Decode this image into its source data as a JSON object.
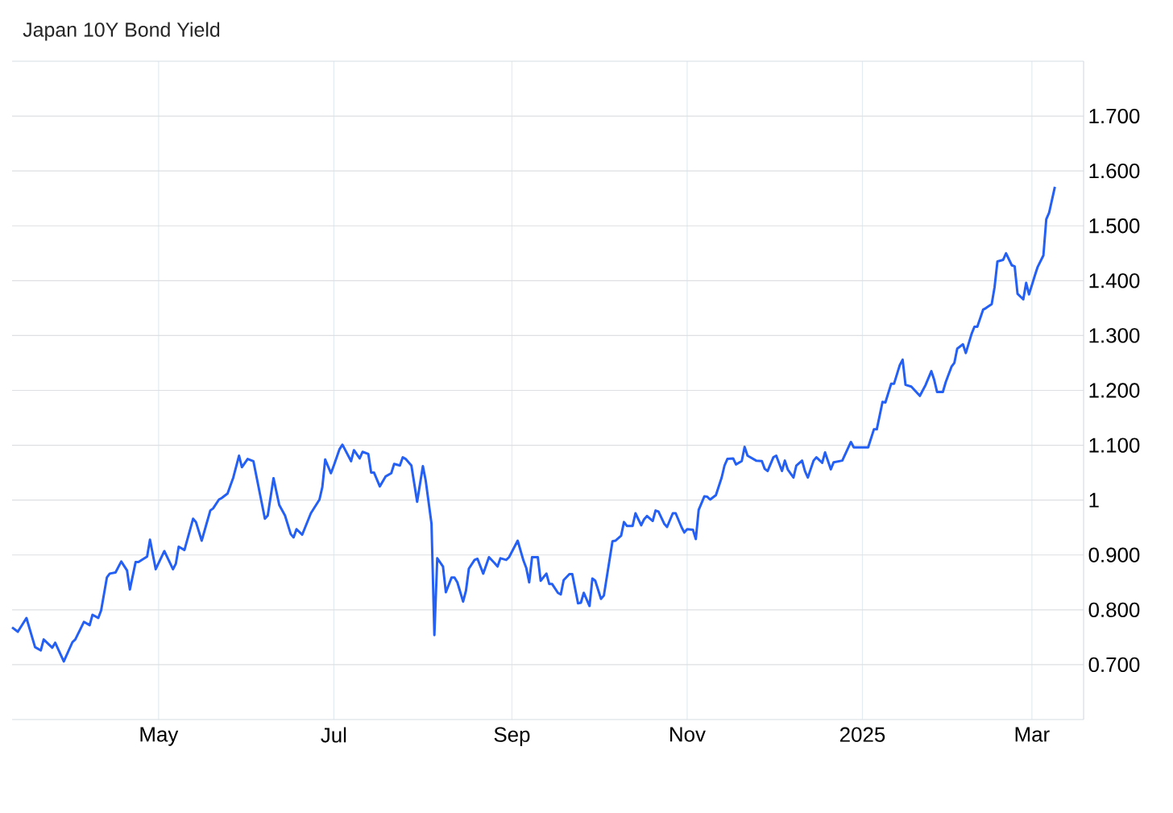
{
  "chart_data": {
    "type": "line",
    "title": "Japan 10Y Bond Yield",
    "x": [
      "2024-03-11",
      "2024-03-13",
      "2024-03-16",
      "2024-03-19",
      "2024-03-21",
      "2024-03-22",
      "2024-03-25",
      "2024-03-26",
      "2024-03-29",
      "2024-04-01",
      "2024-04-02",
      "2024-04-05",
      "2024-04-07",
      "2024-04-08",
      "2024-04-10",
      "2024-04-11",
      "2024-04-13",
      "2024-04-14",
      "2024-04-16",
      "2024-04-18",
      "2024-04-20",
      "2024-04-21",
      "2024-04-23",
      "2024-04-24",
      "2024-04-27",
      "2024-04-28",
      "2024-04-30",
      "2024-05-02",
      "2024-05-03",
      "2024-05-06",
      "2024-05-07",
      "2024-05-08",
      "2024-05-10",
      "2024-05-13",
      "2024-05-14",
      "2024-05-16",
      "2024-05-19",
      "2024-05-20",
      "2024-05-22",
      "2024-05-23",
      "2024-05-25",
      "2024-05-27",
      "2024-05-29",
      "2024-05-30",
      "2024-06-01",
      "2024-06-03",
      "2024-06-07",
      "2024-06-08",
      "2024-06-10",
      "2024-06-12",
      "2024-06-14",
      "2024-06-16",
      "2024-06-17",
      "2024-06-18",
      "2024-06-20",
      "2024-06-23",
      "2024-06-26",
      "2024-06-27",
      "2024-06-28",
      "2024-06-30",
      "2024-07-01",
      "2024-07-03",
      "2024-07-04",
      "2024-07-07",
      "2024-07-08",
      "2024-07-10",
      "2024-07-11",
      "2024-07-13",
      "2024-07-14",
      "2024-07-15",
      "2024-07-17",
      "2024-07-19",
      "2024-07-21",
      "2024-07-22",
      "2024-07-24",
      "2024-07-25",
      "2024-07-26",
      "2024-07-28",
      "2024-07-30",
      "2024-08-01",
      "2024-08-02",
      "2024-08-04",
      "2024-08-05",
      "2024-08-06",
      "2024-08-08",
      "2024-08-09",
      "2024-08-11",
      "2024-08-12",
      "2024-08-13",
      "2024-08-15",
      "2024-08-16",
      "2024-08-17",
      "2024-08-19",
      "2024-08-20",
      "2024-08-22",
      "2024-08-24",
      "2024-08-26",
      "2024-08-27",
      "2024-08-28",
      "2024-08-30",
      "2024-08-31",
      "2024-09-03",
      "2024-09-05",
      "2024-09-06",
      "2024-09-07",
      "2024-09-08",
      "2024-09-10",
      "2024-09-11",
      "2024-09-13",
      "2024-09-14",
      "2024-09-15",
      "2024-09-17",
      "2024-09-18",
      "2024-09-19",
      "2024-09-21",
      "2024-09-22",
      "2024-09-24",
      "2024-09-25",
      "2024-09-26",
      "2024-09-28",
      "2024-09-29",
      "2024-09-30",
      "2024-10-02",
      "2024-10-03",
      "2024-10-06",
      "2024-10-07",
      "2024-10-09",
      "2024-10-10",
      "2024-10-11",
      "2024-10-13",
      "2024-10-14",
      "2024-10-16",
      "2024-10-17",
      "2024-10-18",
      "2024-10-20",
      "2024-10-21",
      "2024-10-22",
      "2024-10-24",
      "2024-10-25",
      "2024-10-27",
      "2024-10-28",
      "2024-10-30",
      "2024-10-31",
      "2024-11-01",
      "2024-11-03",
      "2024-11-04",
      "2024-11-05",
      "2024-11-07",
      "2024-11-08",
      "2024-11-09",
      "2024-11-11",
      "2024-11-13",
      "2024-11-14",
      "2024-11-15",
      "2024-11-17",
      "2024-11-18",
      "2024-11-20",
      "2024-11-21",
      "2024-11-22",
      "2024-11-25",
      "2024-11-27",
      "2024-11-28",
      "2024-11-29",
      "2024-12-01",
      "2024-12-02",
      "2024-12-04",
      "2024-12-05",
      "2024-12-06",
      "2024-12-08",
      "2024-12-09",
      "2024-12-11",
      "2024-12-12",
      "2024-12-13",
      "2024-12-15",
      "2024-12-16",
      "2024-12-18",
      "2024-12-19",
      "2024-12-21",
      "2024-12-22",
      "2024-12-25",
      "2024-12-28",
      "2024-12-29",
      "2025-01-03",
      "2025-01-05",
      "2025-01-06",
      "2025-01-08",
      "2025-01-09",
      "2025-01-11",
      "2025-01-12",
      "2025-01-14",
      "2025-01-15",
      "2025-01-16",
      "2025-01-18",
      "2025-01-21",
      "2025-01-23",
      "2025-01-25",
      "2025-01-26",
      "2025-01-27",
      "2025-01-29",
      "2025-01-30",
      "2025-02-01",
      "2025-02-02",
      "2025-02-03",
      "2025-02-05",
      "2025-02-06",
      "2025-02-08",
      "2025-02-09",
      "2025-02-10",
      "2025-02-12",
      "2025-02-13",
      "2025-02-15",
      "2025-02-16",
      "2025-02-17",
      "2025-02-19",
      "2025-02-20",
      "2025-02-22",
      "2025-02-23",
      "2025-02-24",
      "2025-02-26",
      "2025-02-27",
      "2025-02-28",
      "2025-03-02",
      "2025-03-03",
      "2025-03-05",
      "2025-03-06",
      "2025-03-07",
      "2025-03-09"
    ],
    "series": [
      {
        "color": "#2560f5",
        "values": [
          0.768,
          0.76,
          0.785,
          0.732,
          0.726,
          0.746,
          0.731,
          0.74,
          0.706,
          0.741,
          0.746,
          0.778,
          0.772,
          0.791,
          0.785,
          0.799,
          0.859,
          0.866,
          0.868,
          0.888,
          0.872,
          0.837,
          0.887,
          0.887,
          0.897,
          0.928,
          0.874,
          0.896,
          0.907,
          0.874,
          0.884,
          0.915,
          0.909,
          0.966,
          0.96,
          0.926,
          0.981,
          0.985,
          1.001,
          1.004,
          1.012,
          1.041,
          1.081,
          1.06,
          1.075,
          1.071,
          0.966,
          0.972,
          1.04,
          0.991,
          0.972,
          0.938,
          0.932,
          0.947,
          0.937,
          0.976,
          1.001,
          1.024,
          1.074,
          1.049,
          1.063,
          1.093,
          1.101,
          1.071,
          1.091,
          1.076,
          1.088,
          1.084,
          1.05,
          1.05,
          1.025,
          1.043,
          1.049,
          1.066,
          1.063,
          1.078,
          1.075,
          1.063,
          0.997,
          1.062,
          1.035,
          0.957,
          0.754,
          0.894,
          0.879,
          0.832,
          0.859,
          0.859,
          0.85,
          0.815,
          0.835,
          0.875,
          0.891,
          0.893,
          0.866,
          0.896,
          0.885,
          0.879,
          0.894,
          0.891,
          0.896,
          0.926,
          0.89,
          0.876,
          0.85,
          0.896,
          0.896,
          0.853,
          0.866,
          0.847,
          0.847,
          0.831,
          0.828,
          0.854,
          0.865,
          0.865,
          0.812,
          0.813,
          0.831,
          0.807,
          0.857,
          0.853,
          0.82,
          0.826,
          0.925,
          0.926,
          0.935,
          0.96,
          0.953,
          0.953,
          0.976,
          0.954,
          0.965,
          0.971,
          0.962,
          0.981,
          0.979,
          0.957,
          0.951,
          0.976,
          0.976,
          0.951,
          0.941,
          0.947,
          0.946,
          0.929,
          0.982,
          1.007,
          1.006,
          1.001,
          1.009,
          1.041,
          1.063,
          1.075,
          1.076,
          1.065,
          1.071,
          1.097,
          1.081,
          1.072,
          1.071,
          1.057,
          1.053,
          1.078,
          1.081,
          1.053,
          1.072,
          1.056,
          1.041,
          1.063,
          1.072,
          1.053,
          1.041,
          1.072,
          1.078,
          1.068,
          1.087,
          1.056,
          1.069,
          1.072,
          1.106,
          1.096,
          1.096,
          1.129,
          1.129,
          1.179,
          1.178,
          1.212,
          1.212,
          1.246,
          1.256,
          1.21,
          1.207,
          1.19,
          1.21,
          1.235,
          1.219,
          1.197,
          1.197,
          1.215,
          1.243,
          1.25,
          1.276,
          1.284,
          1.268,
          1.303,
          1.316,
          1.316,
          1.347,
          1.35,
          1.357,
          1.388,
          1.435,
          1.438,
          1.45,
          1.428,
          1.426,
          1.376,
          1.366,
          1.396,
          1.375,
          1.409,
          1.425,
          1.446,
          1.512,
          1.524,
          1.571
        ]
      }
    ],
    "xlim": [
      "2024-03-11",
      "2025-03-19"
    ],
    "xticks": [
      {
        "value": "2024-05-01",
        "label": "May"
      },
      {
        "value": "2024-07-01",
        "label": "Jul"
      },
      {
        "value": "2024-09-01",
        "label": "Sep"
      },
      {
        "value": "2024-11-01",
        "label": "Nov"
      },
      {
        "value": "2025-01-01",
        "label": "2025"
      },
      {
        "value": "2025-03-01",
        "label": "Mar"
      }
    ],
    "ylim": [
      0.6,
      1.8
    ],
    "yticks": [
      {
        "value": 0.7,
        "label": "0.700"
      },
      {
        "value": 0.8,
        "label": "0.800"
      },
      {
        "value": 0.9,
        "label": "0.900"
      },
      1,
      {
        "value": 1.1,
        "label": "1.100"
      },
      {
        "value": 1.2,
        "label": "1.200"
      },
      {
        "value": 1.3,
        "label": "1.300"
      },
      {
        "value": 1.4,
        "label": "1.400"
      },
      {
        "value": 1.5,
        "label": "1.500"
      },
      {
        "value": 1.6,
        "label": "1.600"
      },
      {
        "value": 1.7,
        "label": "1.700"
      }
    ],
    "grid": true
  }
}
